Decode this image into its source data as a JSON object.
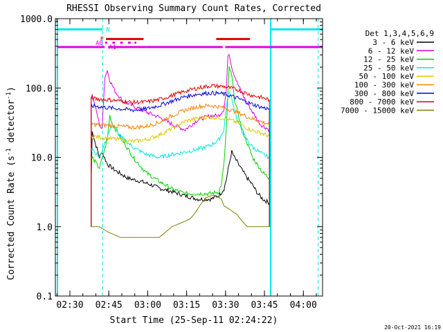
{
  "chart_data": {
    "type": "line",
    "title": "RHESSI Observing Summary Count Rates, Corrected",
    "xlabel": "Start Time (25-Sep-11 02:24:22)",
    "ylabel": "Corrected Count Rate (s-1 detector-1)",
    "ylabel_parts": {
      "main": "Corrected Count Rate (s",
      "exp1": "-1",
      "mid": " detector",
      "exp2": "-1",
      "end": ")"
    },
    "y_scale": "log",
    "ylim": [
      0.1,
      1000
    ],
    "xlim_minutes": [
      0,
      103
    ],
    "x_ticks": [
      {
        "label": "02:30",
        "min": 5.6
      },
      {
        "label": "02:45",
        "min": 20.6
      },
      {
        "label": "03:00",
        "min": 35.6
      },
      {
        "label": "03:15",
        "min": 50.6
      },
      {
        "label": "03:30",
        "min": 65.6
      },
      {
        "label": "03:45",
        "min": 80.6
      },
      {
        "label": "04:00",
        "min": 95.6
      }
    ],
    "y_ticks": [
      {
        "label": "1000.0",
        "value": 1000
      },
      {
        "label": "100.0",
        "value": 100
      },
      {
        "label": "10.0",
        "value": 10
      },
      {
        "label": "1.0",
        "value": 1
      },
      {
        "label": "0.1",
        "value": 0.1
      }
    ],
    "legend_title": "Det 1,3,4,5,6,9",
    "legend_position": "right",
    "series": [
      {
        "name": "3 - 6 keV",
        "color": "#000000",
        "x": [
          13.8,
          14.2,
          15,
          17,
          18,
          20,
          23,
          28,
          33,
          37,
          40,
          45,
          50,
          55,
          60,
          63,
          65,
          66,
          67,
          68,
          69,
          72,
          74,
          76,
          78,
          80,
          82.5
        ],
        "y": [
          4,
          25,
          18,
          10,
          12,
          8,
          6.5,
          5,
          4.5,
          4,
          3.6,
          3.2,
          2.8,
          2.5,
          2.5,
          2.8,
          3.5,
          5,
          8,
          12,
          10,
          6.5,
          5,
          4,
          3,
          2.5,
          2.2
        ]
      },
      {
        "name": "6 - 12 keV",
        "color": "#e000e0",
        "x": [
          13.8,
          14.2,
          15,
          17,
          18,
          19,
          20,
          21,
          23,
          26,
          30,
          35,
          40,
          45,
          50,
          55,
          60,
          63,
          65,
          66,
          66.5,
          67,
          68,
          70,
          73,
          76,
          79,
          82.5
        ],
        "y": [
          70,
          80,
          60,
          30,
          25,
          140,
          180,
          130,
          90,
          65,
          55,
          45,
          38,
          30,
          25,
          35,
          40,
          40,
          50,
          100,
          300,
          320,
          200,
          120,
          70,
          45,
          30,
          25
        ]
      },
      {
        "name": "12 - 25 keV",
        "color": "#00d000",
        "x": [
          13.8,
          14.2,
          15,
          17,
          20,
          21,
          22,
          25,
          30,
          35,
          40,
          45,
          50,
          55,
          60,
          63,
          64,
          65,
          66,
          67,
          68,
          69,
          72,
          76,
          80,
          82.5
        ],
        "y": [
          8,
          10,
          9,
          7,
          18,
          40,
          30,
          20,
          10,
          6,
          4.5,
          3.5,
          3,
          3,
          3,
          3.2,
          4,
          8,
          30,
          200,
          150,
          70,
          25,
          10,
          6,
          5
        ]
      },
      {
        "name": "25 - 50 keV",
        "color": "#00e8e8",
        "x": [
          13.8,
          14.2,
          15,
          17,
          20,
          22,
          25,
          30,
          35,
          40,
          45,
          50,
          55,
          60,
          63,
          65,
          66,
          67,
          68,
          70,
          73,
          76,
          80,
          82.5
        ],
        "y": [
          12,
          14,
          12,
          10,
          20,
          30,
          20,
          14,
          11,
          10,
          11,
          12,
          13,
          15,
          18,
          25,
          60,
          90,
          70,
          35,
          20,
          14,
          11,
          10
        ]
      },
      {
        "name": "50 - 100 keV",
        "color": "#e0c800",
        "x": [
          13.8,
          14.2,
          15,
          20,
          25,
          30,
          35,
          40,
          45,
          50,
          55,
          60,
          65,
          70,
          75,
          80,
          82.5
        ],
        "y": [
          20,
          20,
          20,
          19,
          18,
          17,
          18,
          21,
          26,
          33,
          37,
          38,
          37,
          32,
          25,
          22,
          20
        ]
      },
      {
        "name": "100 - 300 keV",
        "color": "#ff8000",
        "x": [
          13.8,
          14.2,
          15,
          20,
          25,
          30,
          35,
          40,
          45,
          50,
          55,
          60,
          65,
          70,
          75,
          80,
          82.5
        ],
        "y": [
          30,
          30,
          30,
          29,
          28,
          27,
          28,
          32,
          40,
          48,
          54,
          56,
          52,
          45,
          37,
          32,
          30
        ]
      },
      {
        "name": "300 - 800 keV",
        "color": "#0000e0",
        "x": [
          13.8,
          14.2,
          15,
          20,
          25,
          30,
          35,
          40,
          45,
          50,
          55,
          60,
          65,
          70,
          75,
          80,
          82.5
        ],
        "y": [
          55,
          55,
          55,
          52,
          50,
          48,
          50,
          56,
          65,
          75,
          82,
          85,
          82,
          72,
          60,
          52,
          50
        ]
      },
      {
        "name": "800 - 7000 keV",
        "color": "#e00000",
        "x": [
          13.8,
          14.2,
          15,
          20,
          25,
          30,
          35,
          40,
          45,
          50,
          55,
          60,
          65,
          70,
          75,
          80,
          82.5
        ],
        "y": [
          70,
          72,
          70,
          68,
          65,
          62,
          63,
          68,
          78,
          90,
          100,
          108,
          105,
          95,
          80,
          72,
          68
        ]
      },
      {
        "name": "7000 - 15000 keV",
        "color": "#808000",
        "x": [
          13.8,
          17,
          20,
          25,
          30,
          35,
          40,
          45,
          50,
          52,
          54,
          56,
          58,
          60,
          62,
          64,
          65,
          67,
          70,
          72,
          74,
          76,
          78,
          82.5
        ],
        "y": [
          1,
          1,
          0.85,
          0.7,
          0.7,
          0.7,
          0.7,
          1,
          1.2,
          1.3,
          1.6,
          2.1,
          2.6,
          2.8,
          2.8,
          2.5,
          2,
          1.8,
          1.5,
          1.2,
          1,
          1,
          1,
          1
        ]
      }
    ],
    "vertical_lines": [
      {
        "min": 0.8,
        "style": "solid",
        "color": "#00e8e8"
      },
      {
        "min": 18.2,
        "style": "dashed",
        "color": "#00e8e8"
      },
      {
        "min": 83.0,
        "style": "solid",
        "color": "#00e8e8"
      },
      {
        "min": 101.3,
        "style": "dashed",
        "color": "#00e8e8"
      }
    ],
    "flag_bars": [
      {
        "label": "N",
        "color": "#00e8e8",
        "y": 700,
        "segments": [
          [
            0.8,
            18.2
          ],
          [
            83,
            103
          ]
        ]
      },
      {
        "label": "F",
        "color": "#e00000",
        "y": 510,
        "segments": [
          [
            19.5,
            34
          ],
          [
            62,
            75
          ]
        ]
      },
      {
        "label": "A0",
        "color": "#e000e0",
        "y": 450,
        "segments": [
          [
            19.2,
            20
          ],
          [
            22,
            23
          ],
          [
            25,
            26
          ],
          [
            28,
            29
          ],
          [
            30.5,
            31.2
          ]
        ]
      },
      {
        "label": "A1",
        "color": "#e000e0",
        "y": 390,
        "segments": [
          [
            0.8,
            19
          ],
          [
            20.3,
            35
          ],
          [
            35,
            64.5
          ],
          [
            65.5,
            103
          ]
        ]
      }
    ],
    "timestamp": "20-Oct-2021 16:19"
  }
}
